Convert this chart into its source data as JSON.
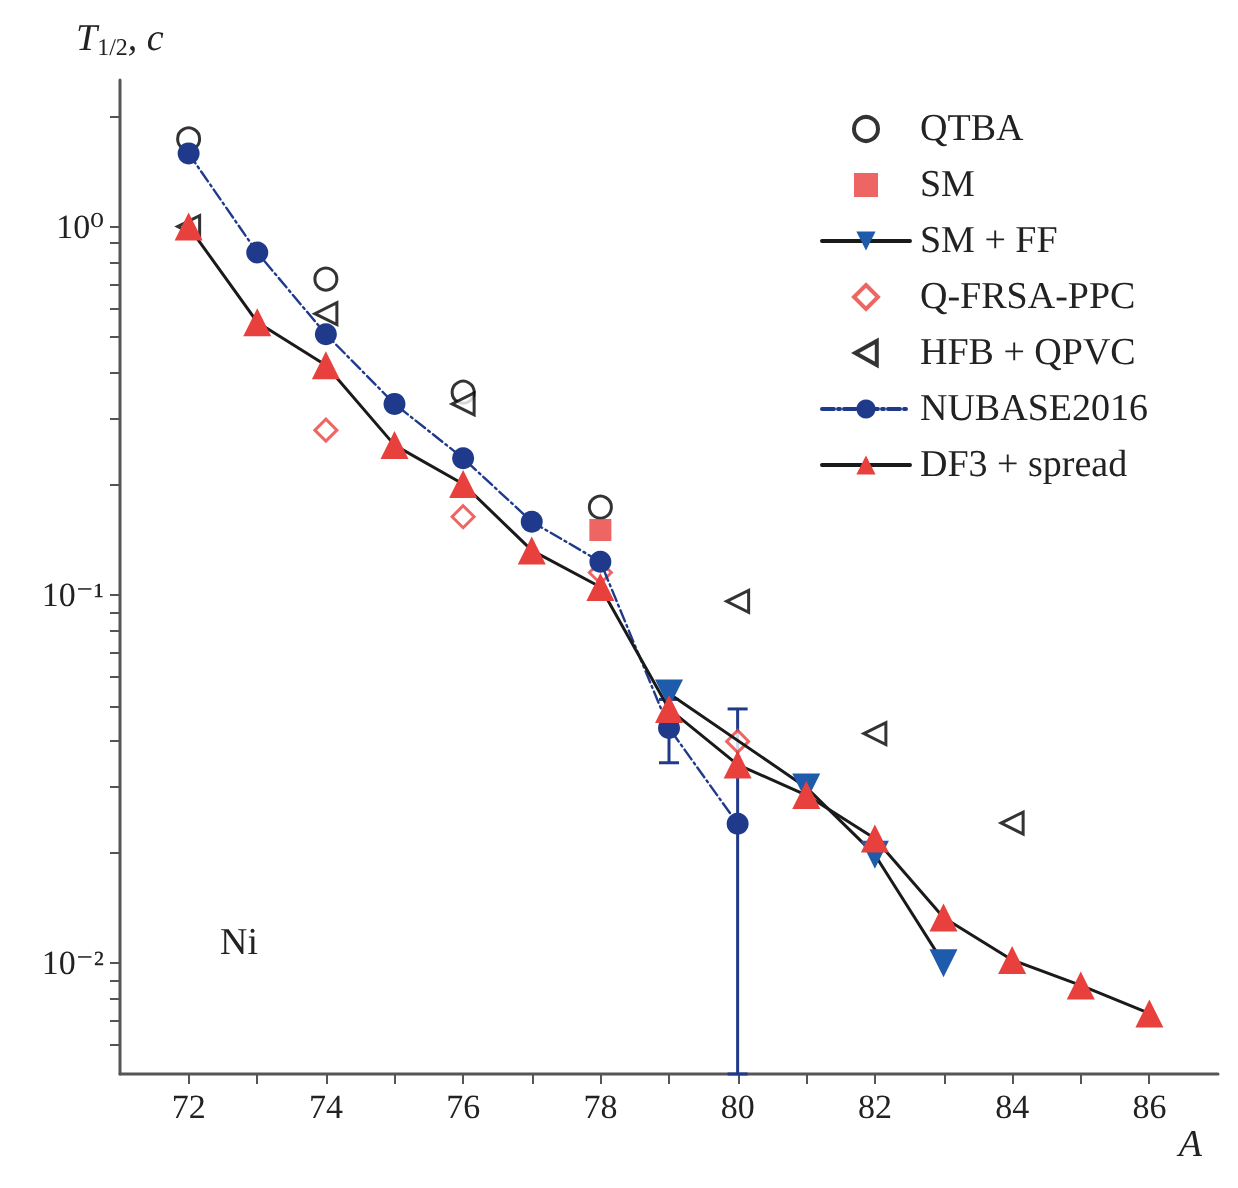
{
  "chart_data": {
    "type": "scatter",
    "xlabel": "A",
    "ylabel": "T$_{1/2}$, c",
    "log": "y",
    "grid": false,
    "legend": "top right",
    "xlim": [
      71,
      87
    ],
    "ylim": [
      0.005,
      2.5
    ],
    "xticks": [
      72,
      {
        "value": 73,
        "label": null
      },
      74,
      {
        "value": 75,
        "label": null
      },
      76,
      {
        "value": 77,
        "label": null
      },
      78,
      {
        "value": 79,
        "label": null
      },
      80,
      {
        "value": 81,
        "label": null
      },
      82,
      {
        "value": 83,
        "label": null
      },
      84,
      {
        "value": 85,
        "label": null
      },
      86
    ],
    "yticks": [
      {
        "value": 0.006,
        "label": null
      },
      {
        "value": 0.007,
        "label": null
      },
      {
        "value": 0.008,
        "label": null
      },
      {
        "value": 0.009,
        "label": null
      },
      {
        "value": 0.01,
        "label": "10⁻²"
      },
      {
        "value": 0.02,
        "label": null
      },
      {
        "value": 0.03,
        "label": null
      },
      {
        "value": 0.04,
        "label": null
      },
      {
        "value": 0.05,
        "label": null
      },
      {
        "value": 0.06,
        "label": null
      },
      {
        "value": 0.07,
        "label": null
      },
      {
        "value": 0.08,
        "label": null
      },
      {
        "value": 0.09,
        "label": null
      },
      {
        "value": 0.1,
        "label": "10⁻¹"
      },
      {
        "value": 0.2,
        "label": null
      },
      {
        "value": 0.3,
        "label": null
      },
      {
        "value": 0.4,
        "label": null
      },
      {
        "value": 0.5,
        "label": null
      },
      {
        "value": 0.6,
        "label": null
      },
      {
        "value": 0.7,
        "label": null
      },
      {
        "value": 0.8,
        "label": null
      },
      {
        "value": 0.9,
        "label": null
      },
      {
        "value": 1,
        "label": "10⁰"
      },
      {
        "value": 2,
        "label": null
      }
    ],
    "annotations": [
      "Ni"
    ],
    "series": [
      {
        "name": "QTBA",
        "marker": "circle-open",
        "color": "#000000",
        "x": [
          72,
          74,
          76,
          78
        ],
        "values": [
          1.73,
          0.72,
          0.355,
          0.173
        ]
      },
      {
        "name": "SM",
        "marker": "square",
        "color": "#e8403c",
        "x": [
          78
        ],
        "values": [
          0.15
        ]
      },
      {
        "name": "SM + FF",
        "type": "line",
        "marker": "triangle-down",
        "line_style": "solid",
        "color": "#1f5bab",
        "x": [
          79,
          80,
          81,
          82,
          83
        ],
        "values": [
          0.054,
          null,
          0.03,
          0.0197,
          0.01
        ]
      },
      {
        "name": "Q-FRSA-PPC",
        "marker": "diamond-open",
        "color": "#e8403c",
        "x": [
          74,
          76,
          78,
          80
        ],
        "values": [
          0.28,
          0.163,
          0.115,
          0.04
        ]
      },
      {
        "name": "HFB + QPVC",
        "marker": "triangle-left-open",
        "color": "#000000",
        "x": [
          72,
          74,
          76,
          80,
          82,
          84
        ],
        "values": [
          1.0,
          0.58,
          0.33,
          0.096,
          0.042,
          0.024
        ]
      },
      {
        "name": "NUBASE2016",
        "type": "line",
        "marker": "circle",
        "line_style": "dashdot",
        "color": "#1f3a8a",
        "x": [
          72,
          73,
          74,
          75,
          76,
          77,
          78,
          79,
          80
        ],
        "values": [
          1.58,
          0.85,
          0.51,
          0.33,
          0.235,
          0.158,
          0.123,
          0.0435,
          0.0239
        ],
        "errors": [
          null,
          null,
          null,
          null,
          null,
          null,
          null,
          [
            0.035,
            0.052
          ],
          [
            0.005,
            0.049
          ]
        ]
      },
      {
        "name": "DF3 + spread",
        "type": "line",
        "marker": "triangle",
        "line_style": "solid",
        "color": "#e8403c",
        "x": [
          72,
          73,
          74,
          75,
          76,
          77,
          78,
          79,
          80,
          81,
          82,
          83,
          84,
          85,
          86
        ],
        "values": [
          1.0,
          0.55,
          0.42,
          0.255,
          0.2,
          0.132,
          0.105,
          0.049,
          0.0346,
          0.0286,
          0.0218,
          0.0133,
          0.0102,
          0.0087,
          0.0073
        ]
      }
    ]
  }
}
